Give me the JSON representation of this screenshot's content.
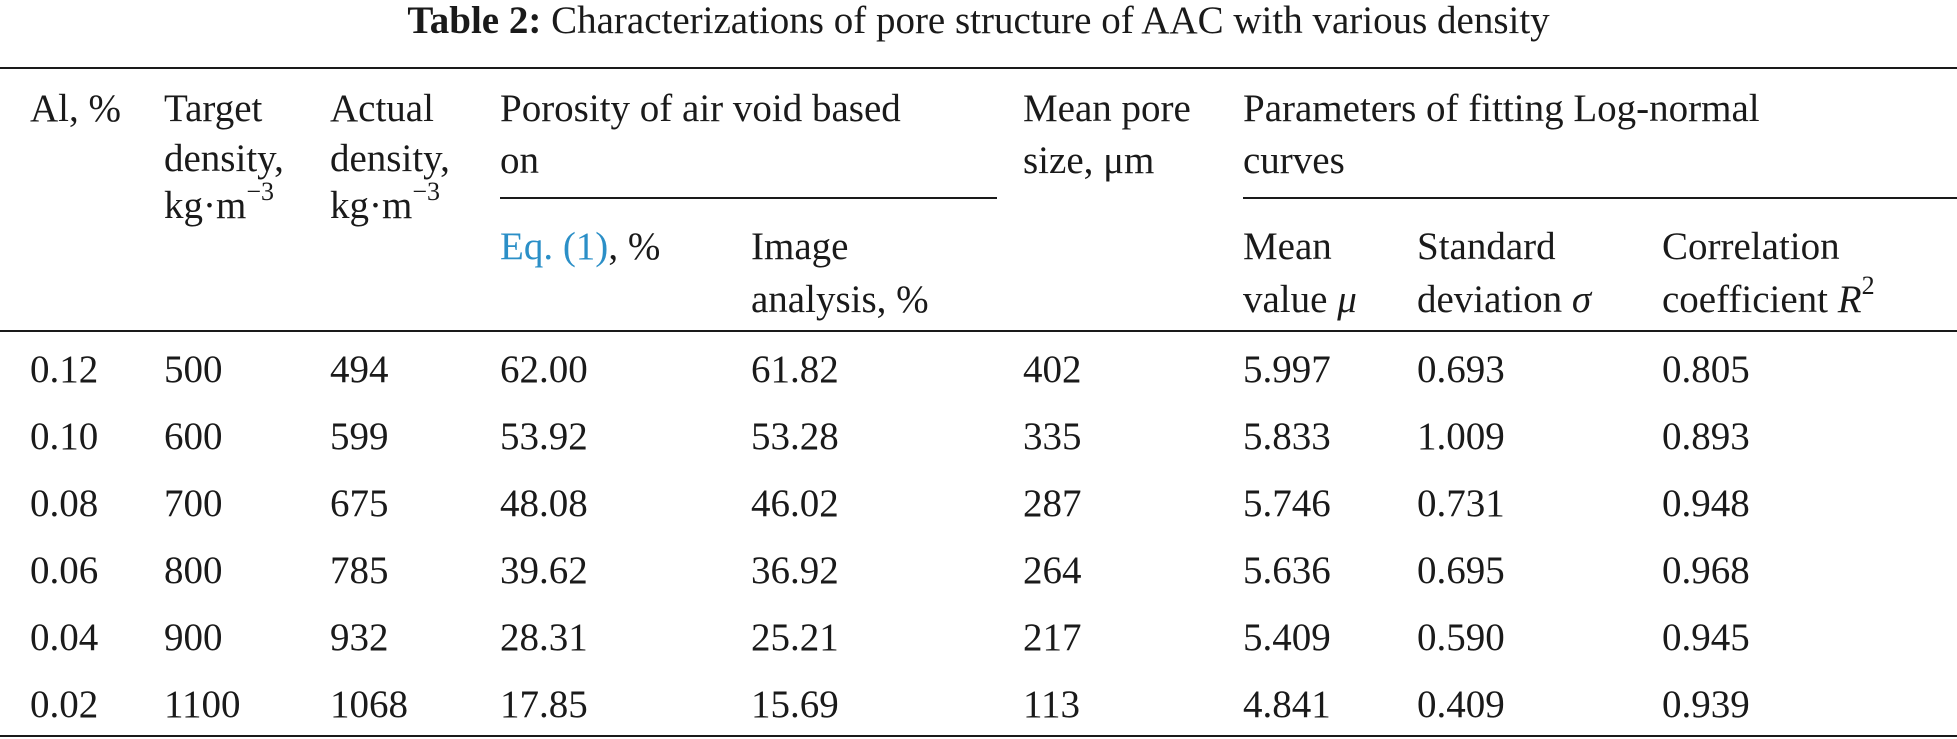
{
  "caption": {
    "label": "Table 2:",
    "text": "Characterizations of pore structure of AAC with various density"
  },
  "headers": {
    "al": "Al, %",
    "target_line1": "Target",
    "target_line2": "density,",
    "target_line3": "kg·m",
    "target_sup": "−3",
    "actual_line1": "Actual",
    "actual_line2": "density,",
    "actual_line3": "kg·m",
    "actual_sup": "−3",
    "porosity_line1": "Porosity of air void based",
    "porosity_line2": "on",
    "eq_link": "Eq. (1)",
    "eq_suffix": ", %",
    "image_line1": "Image",
    "image_line2": "analysis, %",
    "mean_pore_line1": "Mean pore",
    "mean_pore_line2": "size, μm",
    "params_line1": "Parameters of fitting Log-normal",
    "params_line2": "curves",
    "mean_value_line1": "Mean",
    "mean_value_line2": "value ",
    "mean_value_symbol": "μ",
    "std_line1": "Standard",
    "std_line2": "deviation ",
    "std_symbol": "σ",
    "corr_line1": "Correlation",
    "corr_line2": "coefficient ",
    "corr_symbol": "R",
    "corr_sup": "2"
  },
  "rows": [
    [
      "0.12",
      "500",
      "494",
      "62.00",
      "61.82",
      "402",
      "5.997",
      "0.693",
      "0.805"
    ],
    [
      "0.10",
      "600",
      "599",
      "53.92",
      "53.28",
      "335",
      "5.833",
      "1.009",
      "0.893"
    ],
    [
      "0.08",
      "700",
      "675",
      "48.08",
      "46.02",
      "287",
      "5.746",
      "0.731",
      "0.948"
    ],
    [
      "0.06",
      "800",
      "785",
      "39.62",
      "36.92",
      "264",
      "5.636",
      "0.695",
      "0.968"
    ],
    [
      "0.04",
      "900",
      "932",
      "28.31",
      "25.21",
      "217",
      "5.409",
      "0.590",
      "0.945"
    ],
    [
      "0.02",
      "1100",
      "1068",
      "17.85",
      "15.69",
      "113",
      "4.841",
      "0.409",
      "0.939"
    ]
  ],
  "colors": {
    "link": "#2b8fc7",
    "text": "#1a1a1a"
  }
}
